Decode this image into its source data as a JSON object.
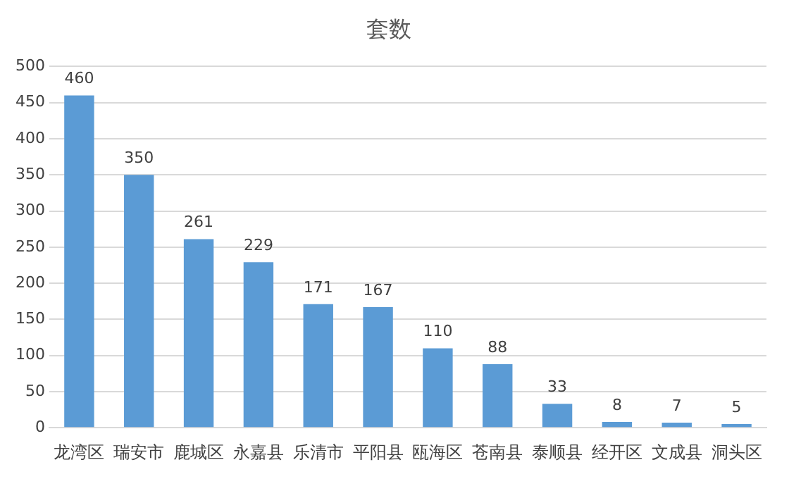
{
  "chart_data": {
    "type": "bar",
    "title": "套数",
    "categories": [
      "龙湾区",
      "瑞安市",
      "鹿城区",
      "永嘉县",
      "乐清市",
      "平阳县",
      "瓯海区",
      "苍南县",
      "泰顺县",
      "经开区",
      "文成县",
      "洞头区"
    ],
    "values": [
      460,
      350,
      261,
      229,
      171,
      167,
      110,
      88,
      33,
      8,
      7,
      5
    ],
    "color": "#5b9bd5",
    "ylim": [
      0,
      500
    ],
    "yticks": [
      0,
      50,
      100,
      150,
      200,
      250,
      300,
      350,
      400,
      450,
      500
    ],
    "grid": "y",
    "data_labels": true,
    "legend": false
  }
}
